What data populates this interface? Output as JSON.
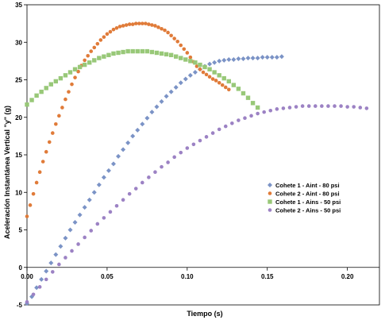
{
  "chart_data": {
    "type": "scatter",
    "title": "",
    "xlabel": "Tiempo (s)",
    "ylabel": "Aceleración Instantánea Vertical \"y\" (g)",
    "xlim": [
      0,
      0.22
    ],
    "ylim": [
      -5,
      35
    ],
    "xticks": [
      0.0,
      0.05,
      0.1,
      0.15,
      0.2
    ],
    "xtick_labels": [
      "0.00",
      "0.05",
      "0.10",
      "0.15",
      "0.20"
    ],
    "yticks": [
      -5,
      0,
      5,
      10,
      15,
      20,
      25,
      30,
      35
    ],
    "ytick_labels": [
      "-5",
      "0",
      "5",
      "10",
      "15",
      "20",
      "25",
      "30",
      "35"
    ],
    "grid": false,
    "legend_position": "center-right",
    "series": [
      {
        "name": "Cohete 1 - Aint - 80 psi",
        "color": "#7b93c6",
        "marker": "diamond",
        "x": [
          0.0,
          0.003,
          0.006,
          0.009,
          0.012,
          0.015,
          0.018,
          0.021,
          0.024,
          0.027,
          0.03,
          0.033,
          0.036,
          0.039,
          0.042,
          0.045,
          0.048,
          0.051,
          0.054,
          0.057,
          0.06,
          0.063,
          0.066,
          0.069,
          0.072,
          0.075,
          0.078,
          0.081,
          0.084,
          0.087,
          0.09,
          0.093,
          0.096,
          0.099,
          0.102,
          0.105,
          0.108,
          0.111,
          0.114,
          0.117,
          0.12,
          0.123,
          0.126,
          0.129,
          0.132,
          0.135,
          0.138,
          0.141,
          0.144,
          0.147,
          0.15,
          0.153,
          0.156,
          0.159
        ],
        "y": [
          -4.8,
          -3.9,
          -2.7,
          -1.6,
          -0.5,
          0.6,
          1.7,
          2.8,
          3.9,
          5.0,
          6.0,
          7.0,
          8.0,
          9.0,
          10.0,
          11.0,
          12.0,
          12.9,
          13.8,
          14.8,
          15.7,
          16.6,
          17.5,
          18.3,
          19.1,
          19.9,
          20.7,
          21.4,
          22.1,
          22.8,
          23.4,
          24.0,
          24.6,
          25.1,
          25.6,
          26.0,
          26.4,
          26.8,
          27.1,
          27.3,
          27.5,
          27.6,
          27.7,
          27.7,
          27.8,
          27.8,
          27.9,
          27.9,
          27.9,
          28.0,
          28.0,
          28.0,
          28.0,
          28.1
        ]
      },
      {
        "name": "Cohete 2 - Aint - 80 psi",
        "color": "#e07b39",
        "marker": "circle",
        "x": [
          0.0,
          0.002,
          0.004,
          0.006,
          0.008,
          0.01,
          0.012,
          0.014,
          0.016,
          0.018,
          0.02,
          0.022,
          0.024,
          0.026,
          0.028,
          0.03,
          0.032,
          0.034,
          0.036,
          0.038,
          0.04,
          0.042,
          0.044,
          0.046,
          0.048,
          0.05,
          0.052,
          0.054,
          0.056,
          0.058,
          0.06,
          0.062,
          0.064,
          0.066,
          0.068,
          0.07,
          0.072,
          0.074,
          0.076,
          0.078,
          0.08,
          0.082,
          0.084,
          0.086,
          0.088,
          0.09,
          0.092,
          0.094,
          0.096,
          0.098,
          0.1,
          0.102,
          0.104,
          0.106,
          0.108,
          0.11,
          0.112,
          0.114,
          0.116,
          0.118,
          0.12,
          0.122,
          0.124,
          0.126
        ],
        "y": [
          6.8,
          8.3,
          9.8,
          11.3,
          12.7,
          14.1,
          15.4,
          16.7,
          17.9,
          19.1,
          20.2,
          21.3,
          22.4,
          23.4,
          24.4,
          25.3,
          26.1,
          26.9,
          27.6,
          28.2,
          28.8,
          29.3,
          29.8,
          30.3,
          30.7,
          31.1,
          31.4,
          31.7,
          31.9,
          32.1,
          32.2,
          32.3,
          32.4,
          32.4,
          32.5,
          32.5,
          32.5,
          32.5,
          32.4,
          32.3,
          32.2,
          32.0,
          31.8,
          31.6,
          31.3,
          30.9,
          30.5,
          30.1,
          29.6,
          29.1,
          28.6,
          28.0,
          27.4,
          26.8,
          26.4,
          26.0,
          25.7,
          25.4,
          25.1,
          24.9,
          24.6,
          24.3,
          24.0,
          23.7
        ]
      },
      {
        "name": "Cohete 1 - Ains - 50 psi",
        "color": "#98c878",
        "marker": "square",
        "x": [
          0.0,
          0.003,
          0.006,
          0.009,
          0.012,
          0.015,
          0.018,
          0.021,
          0.024,
          0.027,
          0.03,
          0.033,
          0.036,
          0.039,
          0.042,
          0.045,
          0.048,
          0.051,
          0.054,
          0.057,
          0.06,
          0.063,
          0.066,
          0.069,
          0.072,
          0.075,
          0.078,
          0.081,
          0.084,
          0.087,
          0.09,
          0.093,
          0.096,
          0.099,
          0.102,
          0.105,
          0.108,
          0.111,
          0.114,
          0.117,
          0.12,
          0.123,
          0.126,
          0.129,
          0.132,
          0.135,
          0.138,
          0.141,
          0.144
        ],
        "y": [
          21.7,
          22.3,
          22.9,
          23.4,
          23.9,
          24.4,
          24.8,
          25.2,
          25.6,
          26.0,
          26.4,
          26.7,
          27.0,
          27.3,
          27.6,
          27.9,
          28.1,
          28.3,
          28.5,
          28.6,
          28.7,
          28.8,
          28.8,
          28.8,
          28.8,
          28.8,
          28.7,
          28.6,
          28.5,
          28.4,
          28.3,
          28.1,
          27.9,
          27.7,
          27.5,
          27.3,
          27.0,
          26.7,
          26.4,
          26.0,
          25.6,
          25.2,
          24.8,
          24.3,
          23.8,
          23.2,
          22.6,
          21.9,
          21.3
        ]
      },
      {
        "name": "Cohete 2 - Ains - 50 psi",
        "color": "#9c82c4",
        "marker": "circle",
        "x": [
          0.0,
          0.004,
          0.008,
          0.012,
          0.016,
          0.02,
          0.024,
          0.028,
          0.032,
          0.036,
          0.04,
          0.044,
          0.048,
          0.052,
          0.056,
          0.06,
          0.064,
          0.068,
          0.072,
          0.076,
          0.08,
          0.084,
          0.088,
          0.092,
          0.096,
          0.1,
          0.104,
          0.108,
          0.112,
          0.116,
          0.12,
          0.124,
          0.128,
          0.132,
          0.136,
          0.14,
          0.144,
          0.148,
          0.152,
          0.156,
          0.16,
          0.164,
          0.168,
          0.172,
          0.176,
          0.18,
          0.184,
          0.188,
          0.192,
          0.196,
          0.2,
          0.204,
          0.208,
          0.212
        ],
        "y": [
          -4.6,
          -3.6,
          -2.6,
          -1.6,
          -0.6,
          0.4,
          1.3,
          2.2,
          3.1,
          4.0,
          4.9,
          5.8,
          6.6,
          7.4,
          8.2,
          9.0,
          9.8,
          10.5,
          11.3,
          12.0,
          12.7,
          13.4,
          14.0,
          14.7,
          15.3,
          15.9,
          16.4,
          16.9,
          17.4,
          17.9,
          18.4,
          18.8,
          19.2,
          19.6,
          19.9,
          20.2,
          20.5,
          20.7,
          20.9,
          21.1,
          21.2,
          21.3,
          21.4,
          21.5,
          21.5,
          21.5,
          21.5,
          21.5,
          21.5,
          21.5,
          21.4,
          21.4,
          21.3,
          21.2
        ]
      }
    ]
  }
}
